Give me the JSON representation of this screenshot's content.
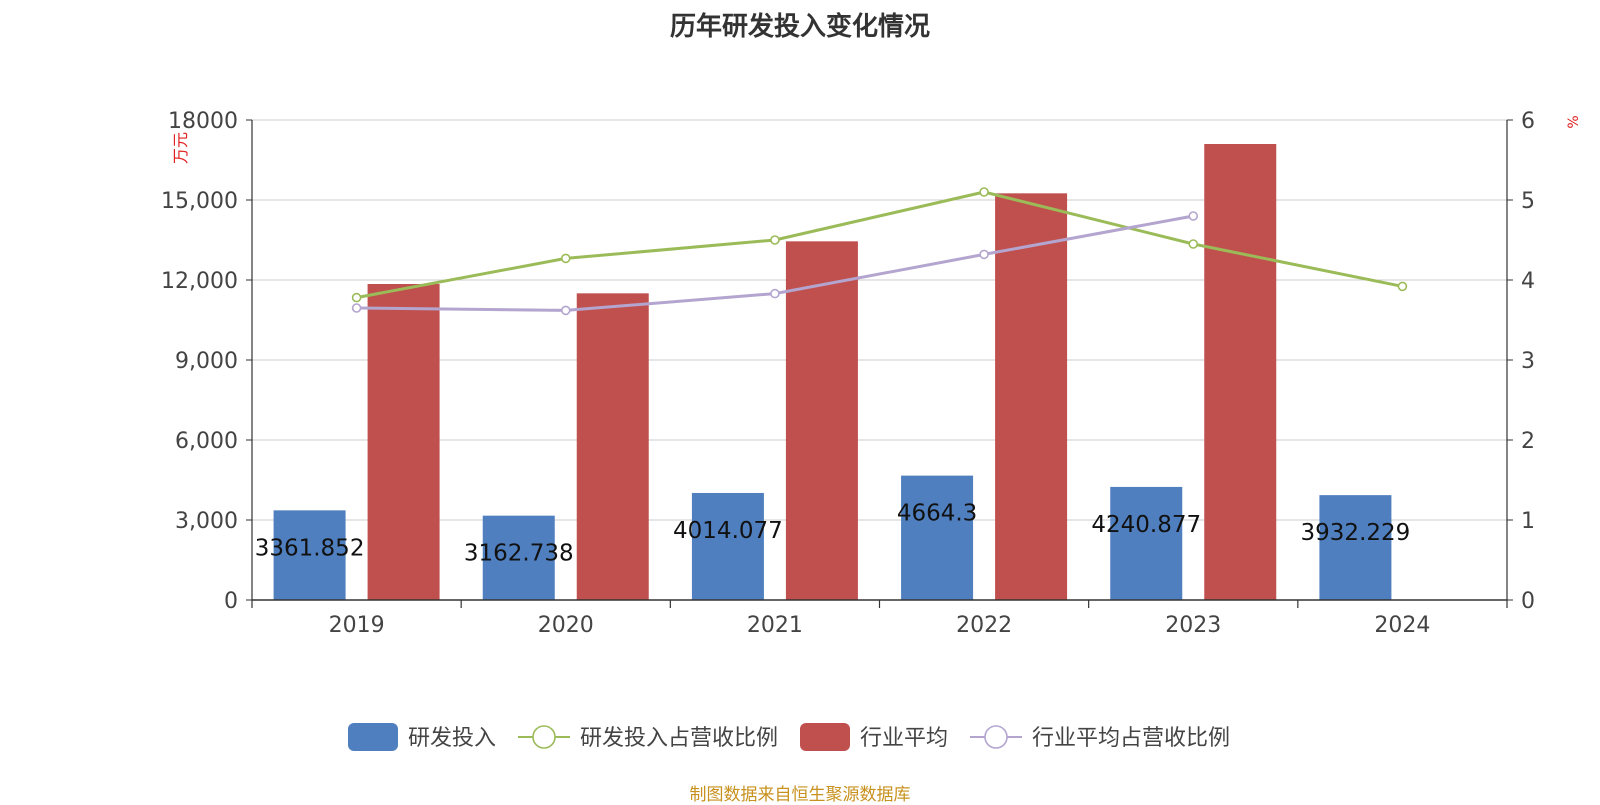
{
  "chart_data": {
    "type": "bar",
    "title": "历年研发投入变化情况",
    "source": "制图数据来自恒生聚源数据库",
    "left_unit": "万元",
    "right_unit": "%",
    "categories": [
      "2019",
      "2020",
      "2021",
      "2022",
      "2023",
      "2024"
    ],
    "left_axis": {
      "min": 0,
      "max": 18000,
      "ticks": [
        "0",
        "3,000",
        "6,000",
        "9,000",
        "12,000",
        "15,000",
        "18000"
      ],
      "tick_values": [
        0,
        3000,
        6000,
        9000,
        12000,
        15000,
        18000
      ]
    },
    "right_axis": {
      "min": 0,
      "max": 6,
      "ticks": [
        "0",
        "1",
        "2",
        "3",
        "4",
        "5",
        "6"
      ],
      "tick_values": [
        0,
        1,
        2,
        3,
        4,
        5,
        6
      ]
    },
    "grid": true,
    "legend_position": "bottom",
    "bar_series": [
      {
        "name": "研发投入",
        "color": "#4f7fbf",
        "values": [
          3361.852,
          3162.738,
          4014.077,
          4664.3,
          4240.877,
          3932.229
        ],
        "labels": [
          "3361.852",
          "3162.738",
          "4014.077",
          "4664.3",
          "4240.877",
          "3932.229"
        ]
      },
      {
        "name": "行业平均",
        "color": "#c0504d",
        "values": [
          11850,
          11500,
          13450,
          15250,
          17100,
          null
        ]
      }
    ],
    "line_series": [
      {
        "name": "研发投入占营收比例",
        "color": "#9bbb59",
        "axis": "right",
        "values": [
          3.78,
          4.27,
          4.5,
          5.1,
          4.45,
          3.92
        ]
      },
      {
        "name": "行业平均占营收比例",
        "color": "#b3a5cf",
        "axis": "right",
        "values": [
          3.65,
          3.62,
          3.83,
          4.32,
          4.8,
          null
        ]
      }
    ],
    "legend": [
      {
        "name": "研发投入",
        "kind": "bar",
        "color": "#4f7fbf"
      },
      {
        "name": "研发投入占营收比例",
        "kind": "line",
        "color": "#9bbb59"
      },
      {
        "name": "行业平均",
        "kind": "bar",
        "color": "#c0504d"
      },
      {
        "name": "行业平均占营收比例",
        "kind": "line",
        "color": "#b3a5cf"
      }
    ]
  }
}
